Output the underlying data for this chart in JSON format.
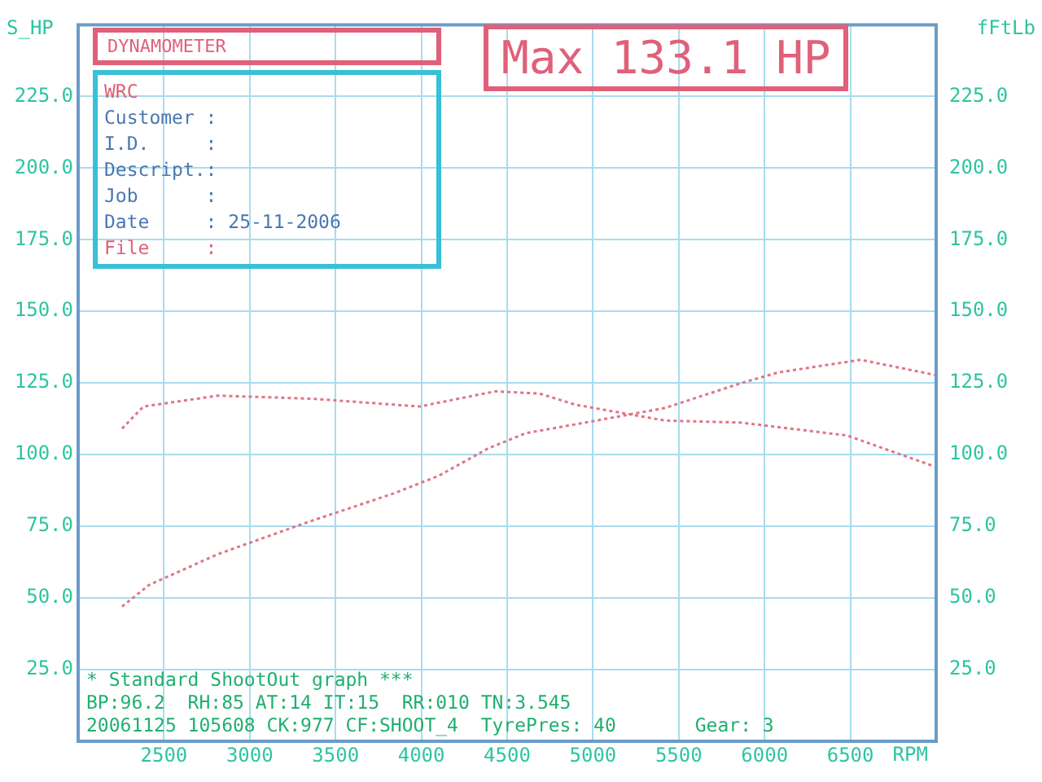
{
  "chart_data": {
    "type": "line",
    "ylabel": "S_HP",
    "y2label": "fFtLb",
    "xlabel": "RPM",
    "x": [
      2256,
      2412,
      2815,
      3330,
      3840,
      4100,
      4390,
      4610,
      5020,
      5420,
      5860,
      6080,
      6560,
      6880,
      7000
    ],
    "series": [
      {
        "color": "#e07585",
        "values": [
          47,
          54.5,
          65.3,
          76.3,
          86.5,
          92.6,
          102.2,
          107.5,
          111.9,
          116.3,
          124.9,
          128.7,
          133.1,
          129.2,
          127.7
        ]
      },
      {
        "color": "#e07585",
        "axis": "y2",
        "x": [
          2256,
          2380,
          2815,
          3370,
          3990,
          4430,
          4690,
          4900,
          5420,
          5860,
          6480,
          7000
        ],
        "values": [
          109.1,
          116.8,
          120.6,
          119.5,
          116.8,
          122.1,
          121.3,
          117.4,
          111.9,
          111.2,
          106.7,
          95.7
        ]
      }
    ],
    "xlim": [
      2000,
      7000
    ],
    "xticks": [
      2500,
      3000,
      3500,
      4000,
      4500,
      5000,
      5500,
      6000,
      6500
    ],
    "ylim": [
      0,
      250
    ],
    "yticks": [
      {
        "value": 25,
        "label": "25.0"
      },
      {
        "value": 50,
        "label": "50.0"
      },
      {
        "value": 75,
        "label": "75.0"
      },
      {
        "value": 100,
        "label": "100.0"
      },
      {
        "value": 125,
        "label": "125.0"
      },
      {
        "value": 150,
        "label": "150.0"
      },
      {
        "value": 175,
        "label": "175.0"
      },
      {
        "value": 200,
        "label": "200.0"
      },
      {
        "value": 225,
        "label": "225.0"
      }
    ],
    "y2lim": [
      0,
      250
    ],
    "y2ticks": [
      {
        "value": 25,
        "label": "25.0"
      },
      {
        "value": 50,
        "label": "50.0"
      },
      {
        "value": 75,
        "label": "75.0"
      },
      {
        "value": 100,
        "label": "100.0"
      },
      {
        "value": 125,
        "label": "125.0"
      },
      {
        "value": 150,
        "label": "150.0"
      },
      {
        "value": 175,
        "label": "175.0"
      },
      {
        "value": 200,
        "label": "200.0"
      },
      {
        "value": 225,
        "label": "225.0"
      }
    ],
    "grid": true,
    "legend": false,
    "marker": "none",
    "line_style": "dotted",
    "annotations": [
      "DYNAMOMETER",
      "WRC",
      "Customer :",
      "I.D.     :",
      "Descript.:",
      "Job      :",
      "Date     : 25-11-2006",
      "File     :",
      "Max 133.1 HP",
      "* Standard ShootOut graph ***",
      "BP:96.2  RH:85 AT:14 IT:15  RR:010 TN:3.545",
      "20061125 105608 CK:977 CF:SHOOT_4  TyrePres: 40       Gear: 3"
    ]
  }
}
